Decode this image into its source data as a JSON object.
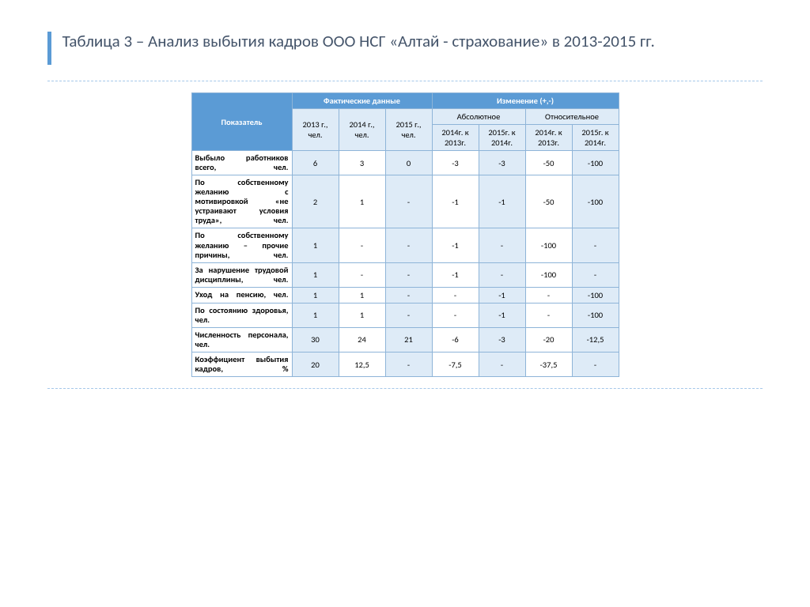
{
  "title": "Таблица 3 – Анализ выбытия кадров ООО НСГ «Алтай - страхование» в 2013-2015 гг.",
  "headers": {
    "indicator": "Показатель",
    "factual": "Фактические данные",
    "change": "Изменение (+,-)",
    "abs": "Абсолютное",
    "rel": "Относительное",
    "y2013": "2013 г., чел.",
    "y2014": "2014 г., чел.",
    "y2015": "2015 г., чел.",
    "d14_13": "2014г. к 2013г.",
    "d15_14": "2015г. к 2014г.",
    "r14_13": "2014г. к 2013г.",
    "r15_14": "2015г. к 2014г."
  },
  "rows": [
    {
      "label": "Выбыло работников всего, чел.",
      "v": [
        "6",
        "3",
        "0",
        "-3",
        "-3",
        "-50",
        "-100"
      ]
    },
    {
      "label": "По собственному желанию с мотивировкой «не устраивают условия труда», чел.",
      "v": [
        "2",
        "1",
        "-",
        "-1",
        "-1",
        "-50",
        "-100"
      ]
    },
    {
      "label": "По собственному желанию – прочие причины, чел.",
      "v": [
        "1",
        "-",
        "-",
        "-1",
        "-",
        "-100",
        "-"
      ]
    },
    {
      "label": "За нарушение трудовой дисциплины, чел.",
      "v": [
        "1",
        "-",
        "-",
        "-1",
        "-",
        "-100",
        "-"
      ]
    },
    {
      "label": "Уход на пенсию, чел.",
      "v": [
        "1",
        "1",
        "-",
        "-",
        "-1",
        "-",
        "-100"
      ]
    },
    {
      "label": "По состоянию здоровья, чел.",
      "v": [
        "1",
        "1",
        "-",
        "-",
        "-1",
        "-",
        "-100"
      ]
    },
    {
      "label": "Численность персонала, чел.",
      "v": [
        "30",
        "24",
        "21",
        "-6",
        "-3",
        "-20",
        "-12,5"
      ]
    },
    {
      "label": "Коэффициент выбытия кадров, %",
      "v": [
        "20",
        "12,5",
        "-",
        "-7,5",
        "-",
        "-37,5",
        "-"
      ]
    }
  ],
  "colors": {
    "header_blue": "#5b9bd5",
    "header_light": "#deebf7",
    "border": "#8eb4d8",
    "title_color": "#44546a",
    "dash": "#a5c8e9"
  }
}
